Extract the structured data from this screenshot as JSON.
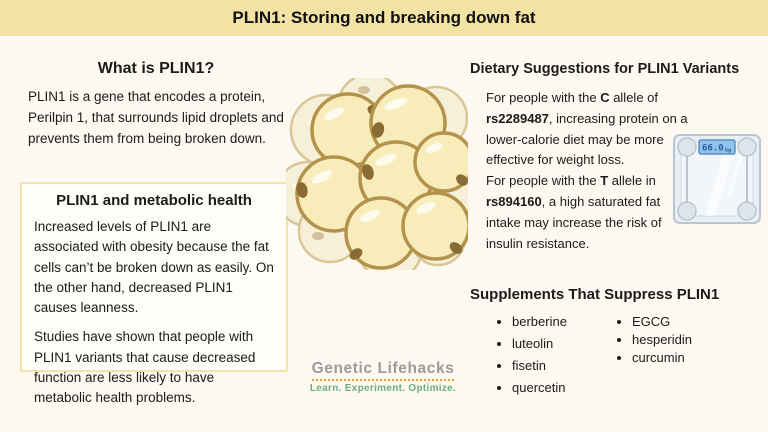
{
  "banner": {
    "title": "PLIN1: Storing and breaking down fat"
  },
  "what_is": {
    "heading": "What is PLIN1?",
    "body": "PLIN1 is a gene that encodes a protein, Perilpin 1, that surrounds lipid droplets and prevents them from being broken down."
  },
  "metabolic_box": {
    "heading": "PLIN1 and metabolic health",
    "para1": "Increased levels of PLIN1 are associated with obesity because the fat cells can’t be broken down as easily. On the other hand, decreased PLIN1 causes leanness.",
    "para2": "Studies have shown that people with PLIN1 variants that cause decreased function are less likely to have metabolic health problems."
  },
  "dietary": {
    "heading": "Dietary Suggestions for PLIN1 Variants",
    "p1_s1": "For people with the ",
    "p1_s2": "C",
    "p1_s3": " allele of ",
    "p1_s4": "rs2289487",
    "p1_s5": ", increasing protein on a lower-calorie diet may be more effective for weight loss.",
    "p2_s1": "For people with the ",
    "p2_s2": "T",
    "p2_s3": " allele in ",
    "p2_s4": "rs894160",
    "p2_s5": ", a high saturated fat intake may increase the risk of insulin resistance."
  },
  "scale": {
    "display_value": "66.0",
    "display_unit": "kg"
  },
  "supplements": {
    "heading": "Supplements That Suppress PLIN1",
    "col1": [
      "berberine",
      "luteolin",
      "fisetin",
      "quercetin"
    ],
    "col2": [
      "EGCG",
      "hesperidin",
      "curcumin"
    ]
  },
  "logo": {
    "name": "Genetic Lifehacks",
    "tagline": "Learn. Experiment. Optimize."
  },
  "colors": {
    "banner_bg": "#f2e3a5",
    "page_bg": "#fdf9f0",
    "box_border": "#f3e3ab",
    "fat_cell_fill": "#f8ecba",
    "fat_cell_stroke": "#b3924c",
    "scale_display_bg": "#8fc3ec",
    "scale_display_text": "#2b5d9f",
    "logo_gray": "#9b9b9b",
    "logo_green": "#6fae7e"
  }
}
